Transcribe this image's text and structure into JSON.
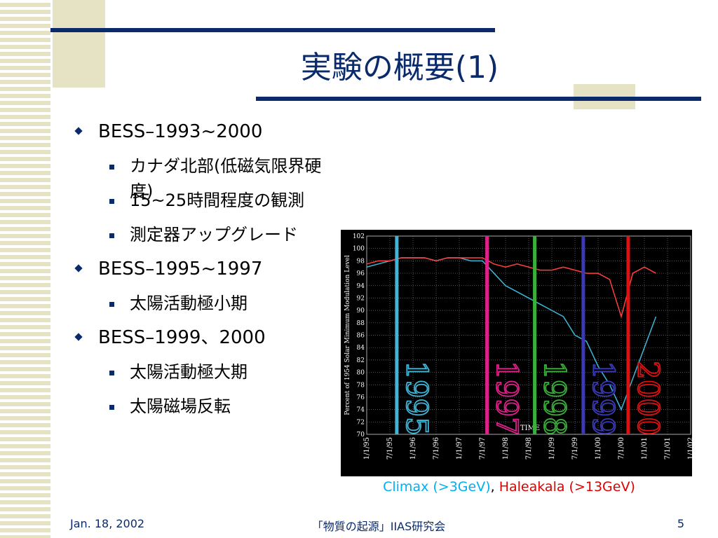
{
  "header": {
    "title": "実験の概要(1)"
  },
  "bullets": [
    {
      "text": "BESS–1993~2000",
      "items": [
        "カナダ北部(低磁気限界硬度)",
        "15~25時間程度の観測",
        "測定器アップグレード"
      ]
    },
    {
      "text": "BESS–1995~1997",
      "items": [
        "太陽活動極小期"
      ]
    },
    {
      "text": "BESS–1999、2000",
      "items": [
        "太陽活動極大期",
        "太陽磁場反転"
      ]
    }
  ],
  "footer": {
    "date": "Jan. 18, 2002",
    "event": "「物質の起源」IIAS研究会",
    "page": "5"
  },
  "chart_data": {
    "type": "line",
    "ylabel": "Percent of 1954 Solar Minimum Modulation Level",
    "xlabel": "TIME",
    "xlim": [
      1995,
      2002
    ],
    "xticks": [
      {
        "value": 1995,
        "label": "1/1/95"
      },
      {
        "value": 1995.5,
        "label": "7/1/95"
      },
      {
        "value": 1996,
        "label": "1/1/96"
      },
      {
        "value": 1996.5,
        "label": "7/1/96"
      },
      {
        "value": 1997,
        "label": "1/1/97"
      },
      {
        "value": 1997.5,
        "label": "7/1/97"
      },
      {
        "value": 1998,
        "label": "1/1/98"
      },
      {
        "value": 1998.5,
        "label": "7/1/98"
      },
      {
        "value": 1999,
        "label": "1/1/99"
      },
      {
        "value": 1999.5,
        "label": "7/1/99"
      },
      {
        "value": 2000,
        "label": "1/1/00"
      },
      {
        "value": 2000.5,
        "label": "7/1/00"
      },
      {
        "value": 2001,
        "label": "1/1/01"
      },
      {
        "value": 2001.5,
        "label": "7/1/01"
      },
      {
        "value": 2002,
        "label": "1/1/02"
      }
    ],
    "ylim": [
      70,
      102
    ],
    "yticks": [
      70,
      72,
      74,
      76,
      78,
      80,
      82,
      84,
      86,
      88,
      90,
      92,
      94,
      96,
      98,
      100,
      102
    ],
    "grid": true,
    "x": [
      1995,
      1995.25,
      1995.5,
      1995.75,
      1996,
      1996.25,
      1996.5,
      1996.75,
      1997,
      1997.25,
      1997.5,
      1997.75,
      1998,
      1998.25,
      1998.5,
      1998.75,
      1999,
      1999.25,
      1999.5,
      1999.75,
      2000,
      2000.25,
      2000.5,
      2000.75,
      2001,
      2001.25
    ],
    "series": [
      {
        "name": "Climax (>3GeV)",
        "color": "#3fb6d8",
        "values": [
          97,
          97.5,
          98,
          98.5,
          98.5,
          98.5,
          98,
          98.5,
          98.5,
          98,
          98,
          96,
          94,
          93,
          92,
          91,
          90,
          89,
          86,
          85,
          81,
          78,
          74,
          79,
          84,
          89
        ]
      },
      {
        "name": "Haleakala (>13GeV)",
        "color": "#ff4040",
        "values": [
          97.5,
          98,
          98,
          98.5,
          98.5,
          98.5,
          98,
          98.5,
          98.5,
          98.5,
          98.5,
          97.5,
          97,
          97.5,
          97,
          96.5,
          96.5,
          97,
          96.5,
          96,
          96,
          95,
          89,
          96,
          97,
          96
        ]
      }
    ],
    "legend_separator": ", ",
    "markers": [
      {
        "x": 1995.65,
        "label": "1995",
        "color": "#3fb6d8"
      },
      {
        "x": 1997.6,
        "label": "1997",
        "color": "#e0208a"
      },
      {
        "x": 1998.63,
        "label": "1998",
        "color": "#3ab03a"
      },
      {
        "x": 1999.68,
        "label": "1999",
        "color": "#3a3ab8"
      },
      {
        "x": 2000.65,
        "label": "2000",
        "color": "#e01010"
      }
    ]
  }
}
